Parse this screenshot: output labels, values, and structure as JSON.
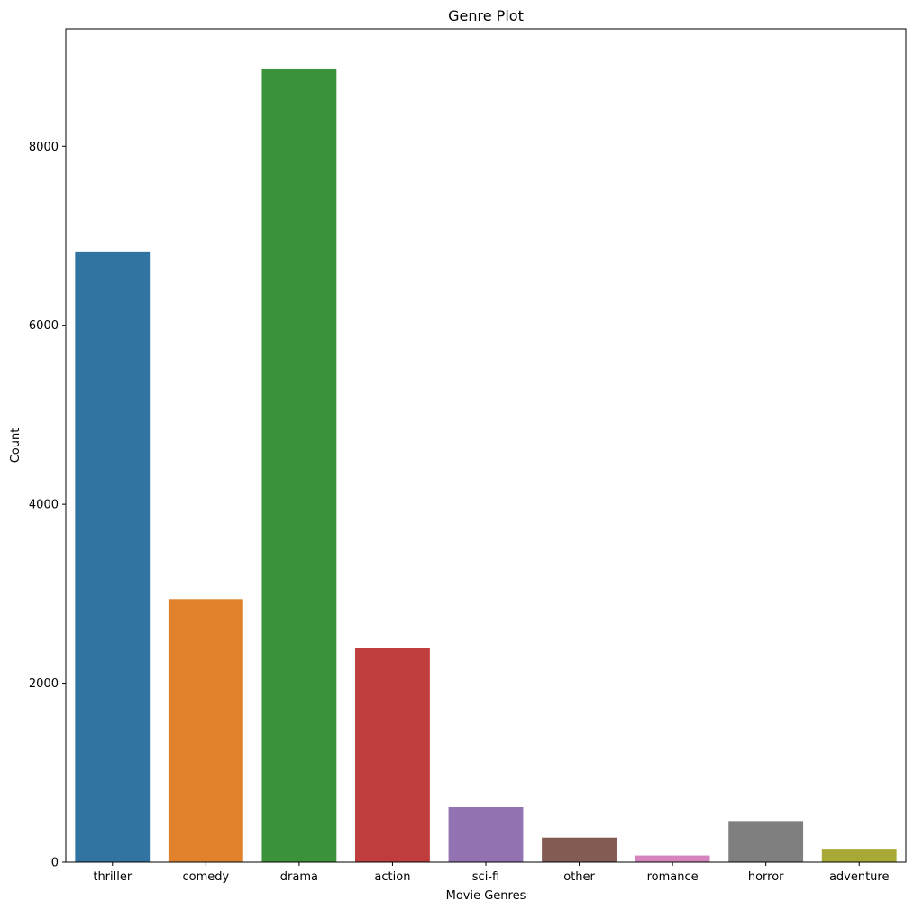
{
  "chart_data": {
    "type": "bar",
    "title": "Genre Plot",
    "xlabel": "Movie Genres",
    "ylabel": "Count",
    "categories": [
      "thriller",
      "comedy",
      "drama",
      "action",
      "sci-fi",
      "other",
      "romance",
      "horror",
      "adventure"
    ],
    "values": [
      6825,
      2940,
      8870,
      2395,
      615,
      275,
      75,
      460,
      150
    ],
    "colors": [
      "#3274a1",
      "#e1812c",
      "#3a923a",
      "#c03d3e",
      "#9372b2",
      "#845b53",
      "#d684bd",
      "#7f7f7f",
      "#a9aa35"
    ],
    "ylim": [
      0,
      9313
    ],
    "yticks": [
      0,
      2000,
      4000,
      6000,
      8000
    ],
    "grid": false
  }
}
